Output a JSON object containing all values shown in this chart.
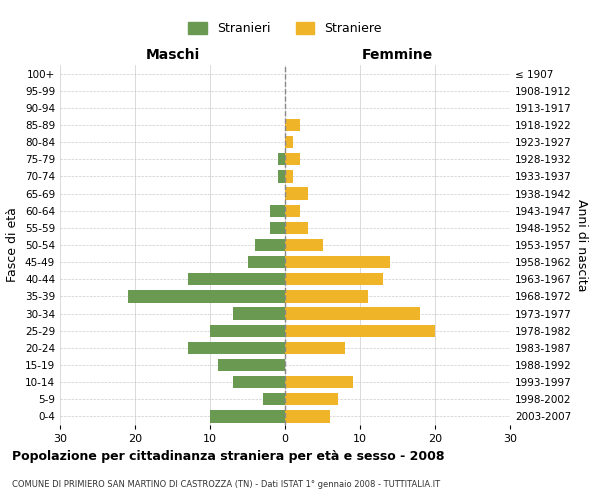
{
  "age_groups": [
    "100+",
    "95-99",
    "90-94",
    "85-89",
    "80-84",
    "75-79",
    "70-74",
    "65-69",
    "60-64",
    "55-59",
    "50-54",
    "45-49",
    "40-44",
    "35-39",
    "30-34",
    "25-29",
    "20-24",
    "15-19",
    "10-14",
    "5-9",
    "0-4"
  ],
  "birth_years": [
    "≤ 1907",
    "1908-1912",
    "1913-1917",
    "1918-1922",
    "1923-1927",
    "1928-1932",
    "1933-1937",
    "1938-1942",
    "1943-1947",
    "1948-1952",
    "1953-1957",
    "1958-1962",
    "1963-1967",
    "1968-1972",
    "1973-1977",
    "1978-1982",
    "1983-1987",
    "1988-1992",
    "1993-1997",
    "1998-2002",
    "2003-2007"
  ],
  "males": [
    0,
    0,
    0,
    0,
    0,
    1,
    1,
    0,
    2,
    2,
    4,
    5,
    13,
    21,
    7,
    10,
    13,
    9,
    7,
    3,
    10
  ],
  "females": [
    0,
    0,
    0,
    2,
    1,
    2,
    1,
    3,
    2,
    3,
    5,
    14,
    13,
    11,
    18,
    20,
    8,
    0,
    9,
    7,
    6
  ],
  "male_color": "#6a9a52",
  "female_color": "#f0b429",
  "background_color": "#ffffff",
  "grid_color": "#cccccc",
  "title": "Popolazione per cittadinanza straniera per età e sesso - 2008",
  "subtitle": "COMUNE DI PRIMIERO SAN MARTINO DI CASTROZZA (TN) - Dati ISTAT 1° gennaio 2008 - TUTTITALIA.IT",
  "xlabel_left": "Maschi",
  "xlabel_right": "Femmine",
  "ylabel_left": "Fasce di età",
  "ylabel_right": "Anni di nascita",
  "legend_male": "Stranieri",
  "legend_female": "Straniere",
  "xlim": 30
}
